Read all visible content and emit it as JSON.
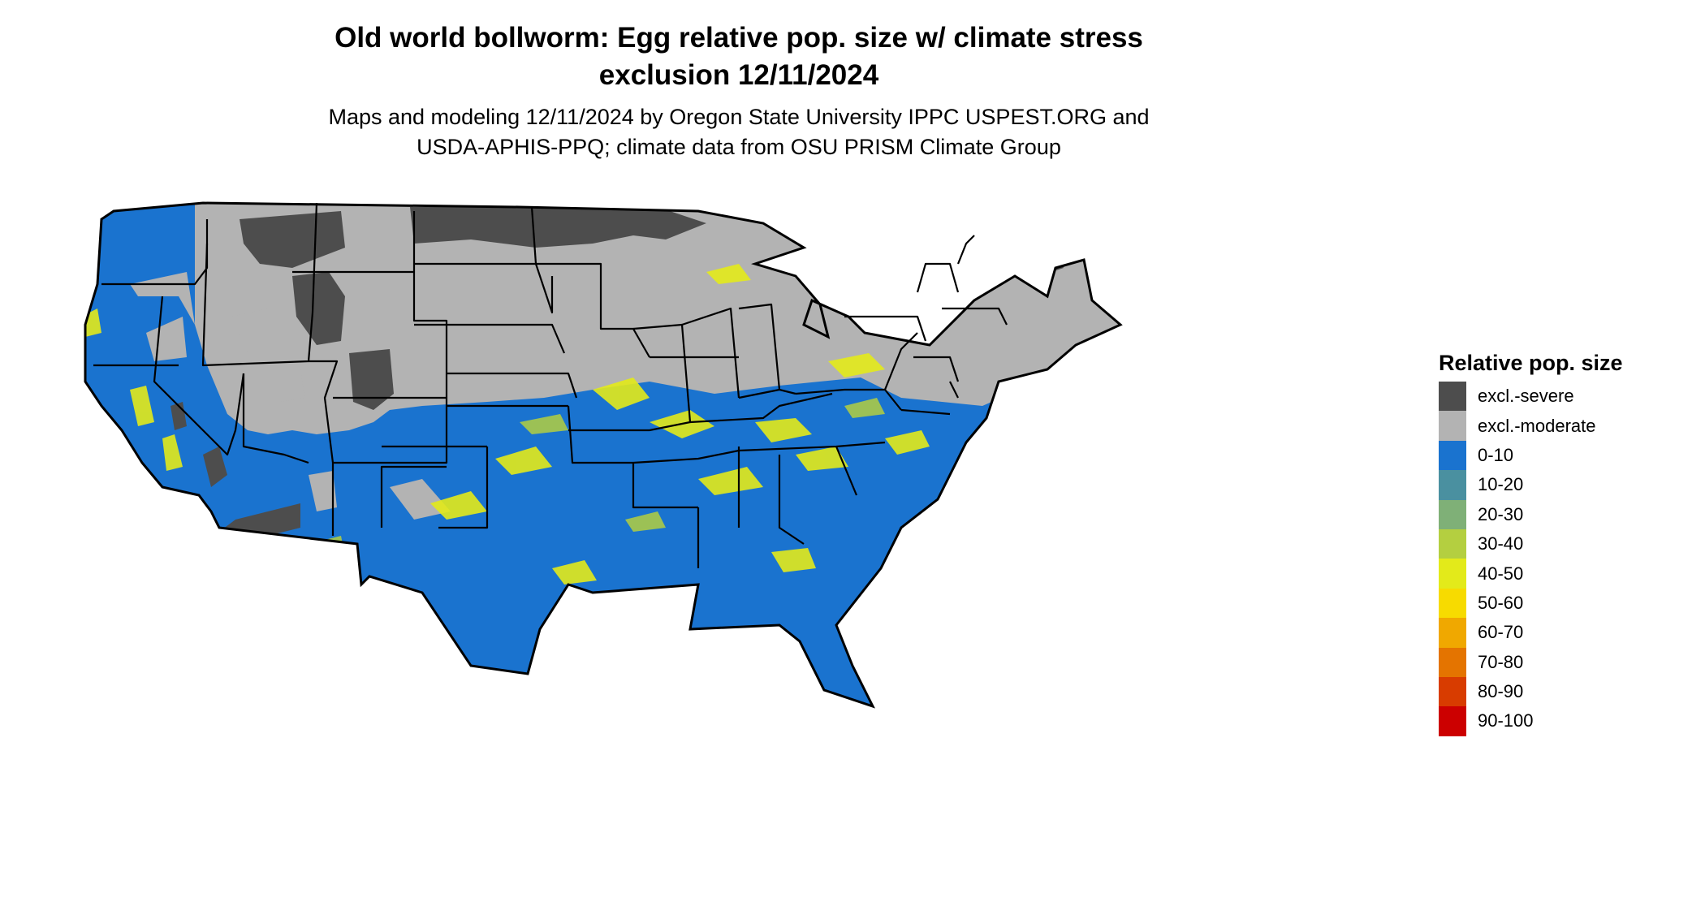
{
  "title": {
    "line1": "Old world bollworm: Egg relative pop. size w/ climate stress",
    "line2": "exclusion 12/11/2024"
  },
  "subtitle": {
    "line1": "Maps and modeling 12/11/2024 by Oregon State University IPPC USPEST.ORG and",
    "line2": "USDA-APHIS-PPQ; climate data from OSU PRISM Climate Group"
  },
  "legend": {
    "title": "Relative pop. size",
    "items": [
      {
        "label": "excl.-severe",
        "color": "#4d4d4d"
      },
      {
        "label": "excl.-moderate",
        "color": "#b3b3b3"
      },
      {
        "label": "0-10",
        "color": "#1a73cf"
      },
      {
        "label": "10-20",
        "color": "#4a90a0"
      },
      {
        "label": "20-30",
        "color": "#7fb077"
      },
      {
        "label": "30-40",
        "color": "#b4cf40"
      },
      {
        "label": "40-50",
        "color": "#e3ea1a"
      },
      {
        "label": "50-60",
        "color": "#f7db00"
      },
      {
        "label": "60-70",
        "color": "#f0a800"
      },
      {
        "label": "70-80",
        "color": "#e47400"
      },
      {
        "label": "80-90",
        "color": "#d83c00"
      },
      {
        "label": "90-100",
        "color": "#cc0000"
      }
    ]
  }
}
